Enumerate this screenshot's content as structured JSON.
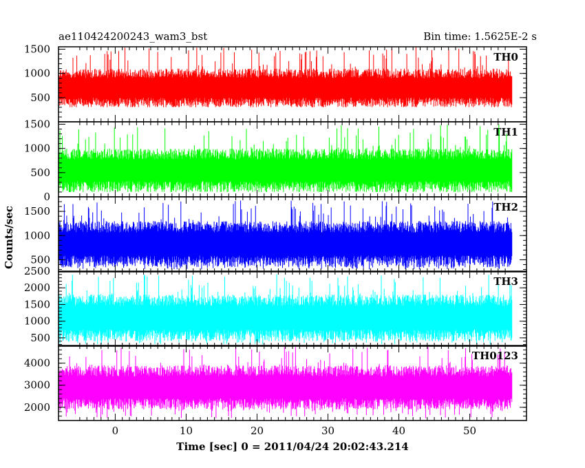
{
  "header": {
    "title": "ae110424200243_wam3_bst",
    "bin_time": "Bin time: 1.5625E-2 s"
  },
  "chart_data": {
    "type": "line",
    "title": "ae110424200243_wam3_bst",
    "subtitle": "Bin time: 1.5625E-2 s",
    "xlabel": "Time [sec] 0 = 2011/04/24 20:02:43.214",
    "ylabel": "Counts/sec",
    "xlim": [
      -8,
      58
    ],
    "x_ticks": [
      0,
      10,
      20,
      30,
      40,
      50
    ],
    "grid": false,
    "x_range_data": [
      -8,
      56
    ],
    "panels": [
      {
        "name": "TH0",
        "color": "#ff0000",
        "ylim": [
          0,
          1550
        ],
        "yticks": [
          500,
          1000,
          1500
        ],
        "baseline": 400,
        "peak": 1550,
        "typical_low": 300,
        "typical_high": 1100
      },
      {
        "name": "TH1",
        "color": "#00ff00",
        "ylim": [
          0,
          1550
        ],
        "yticks": [
          0,
          500,
          1000,
          1500
        ],
        "baseline": 100,
        "peak": 1500,
        "typical_low": 100,
        "typical_high": 1000
      },
      {
        "name": "TH2",
        "color": "#0000ff",
        "ylim": [
          250,
          1800
        ],
        "yticks": [
          500,
          1000,
          1500
        ],
        "baseline": 300,
        "peak": 1750,
        "typical_low": 350,
        "typical_high": 1300
      },
      {
        "name": "TH3",
        "color": "#00ffff",
        "ylim": [
          250,
          2500
        ],
        "yticks": [
          500,
          1000,
          1500,
          2000,
          2500
        ],
        "baseline": 300,
        "peak": 2450,
        "typical_low": 400,
        "typical_high": 1800
      },
      {
        "name": "TH0123",
        "color": "#ff00ff",
        "ylim": [
          1400,
          4800
        ],
        "yticks": [
          2000,
          3000,
          4000
        ],
        "baseline": 1500,
        "peak": 4750,
        "typical_low": 1900,
        "typical_high": 3900
      }
    ]
  }
}
